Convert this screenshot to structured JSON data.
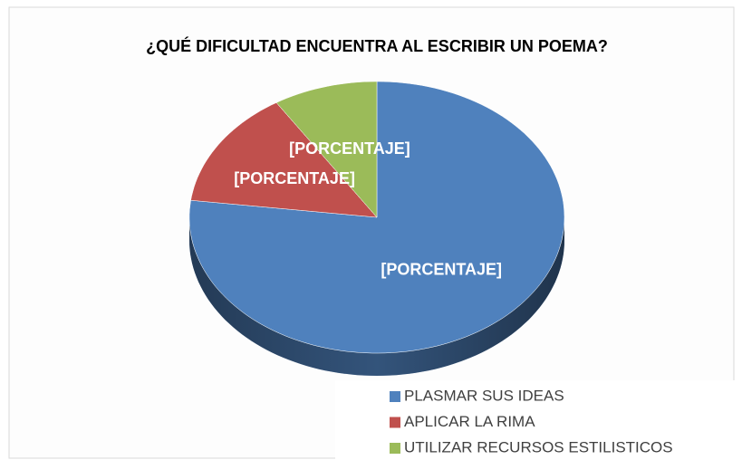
{
  "chart_data": {
    "type": "pie",
    "title": "¿QUÉ DIFICULTAD  ENCUENTRA AL ESCRIBIR UN POEMA?",
    "categories": [
      "PLASMAR SUS IDEAS",
      "APLICAR LA RIMA",
      "UTILIZAR RECURSOS ESTILISTICOS"
    ],
    "values": [
      77,
      14,
      9
    ],
    "value_labels": [
      "[PORCENTAJE]",
      "[PORCENTAJE]",
      "[PORCENTAJE]"
    ],
    "colors": [
      "#4f81bd",
      "#c0504d",
      "#9bbb59"
    ],
    "legend": "bottom-right"
  }
}
